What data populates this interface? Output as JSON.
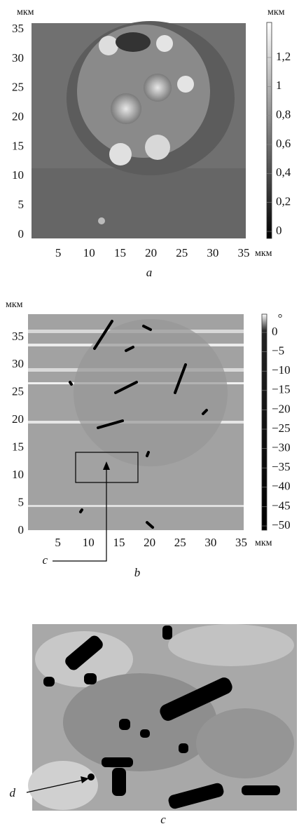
{
  "panels": [
    {
      "caption": "a",
      "y_unit": "мкм",
      "x_unit": "мкм",
      "colorbar_unit": "мкм",
      "xticks": [
        5,
        10,
        15,
        20,
        25,
        30,
        35
      ],
      "yticks": [
        0,
        5,
        10,
        15,
        20,
        25,
        30,
        35
      ],
      "colorbar_ticks": [
        0,
        {
          "value": 0.2,
          "label": "0,2"
        },
        {
          "value": 0.4,
          "label": "0,4"
        },
        {
          "value": 0.6,
          "label": "0,6"
        },
        {
          "value": 0.8,
          "label": "0,8"
        },
        1,
        {
          "value": 1.2,
          "label": "1,2"
        }
      ]
    },
    {
      "caption": "b",
      "y_unit": "мкм",
      "x_unit": "мкм",
      "colorbar_top_label": "°",
      "pointer_label": "c",
      "xticks": [
        5,
        10,
        15,
        20,
        25,
        30,
        35
      ],
      "yticks": [
        0,
        5,
        10,
        15,
        20,
        25,
        30,
        35
      ],
      "colorbar_ticks": [
        0,
        {
          "value": -5,
          "label": "−5"
        },
        {
          "value": -10,
          "label": "−10"
        },
        {
          "value": -15,
          "label": "−15"
        },
        {
          "value": -20,
          "label": "−20"
        },
        {
          "value": -25,
          "label": "−25"
        },
        {
          "value": -30,
          "label": "−30"
        },
        {
          "value": -35,
          "label": "−35"
        },
        {
          "value": -40,
          "label": "−40"
        },
        {
          "value": -45,
          "label": "−45"
        },
        {
          "value": -50,
          "label": "−50"
        }
      ]
    },
    {
      "caption": "c",
      "pointer_label": "d"
    }
  ]
}
